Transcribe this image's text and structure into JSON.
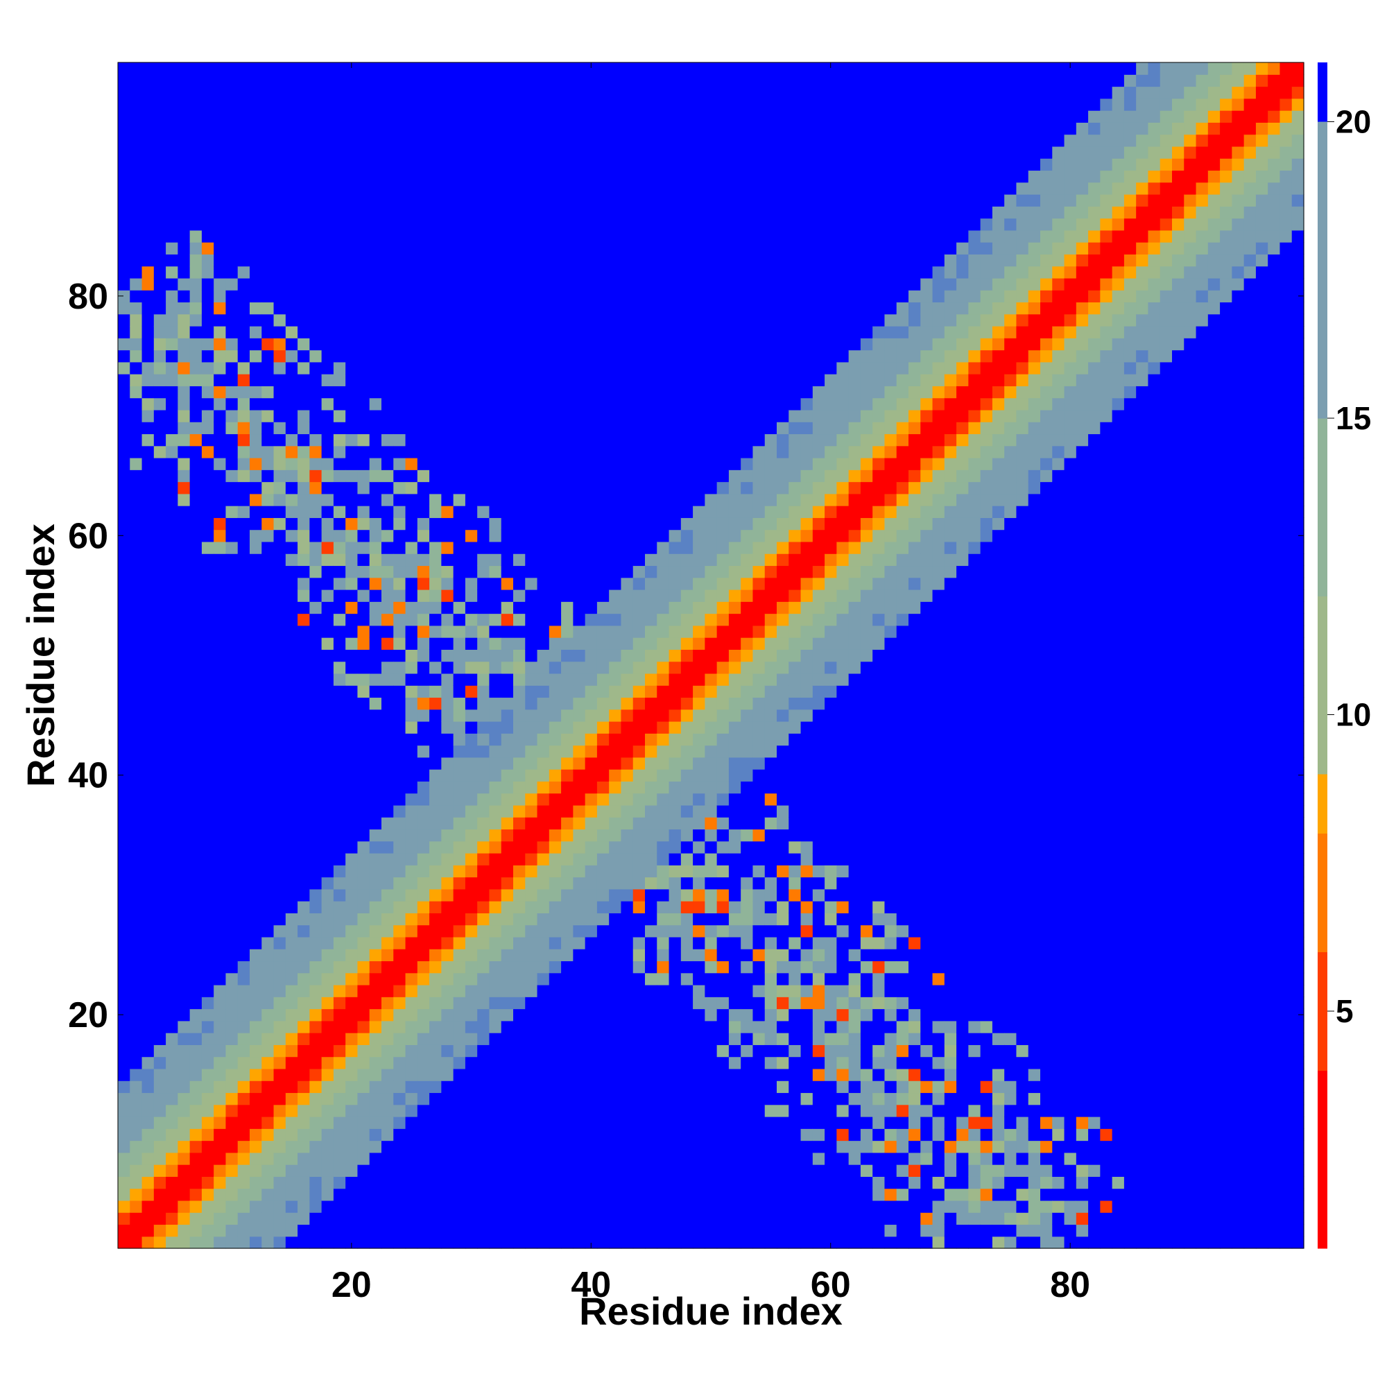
{
  "chart_data": {
    "type": "heatmap",
    "title": "",
    "xlabel": "Residue index",
    "ylabel": "Residue index",
    "n_residues": 99,
    "xlim": [
      1,
      99
    ],
    "ylim": [
      1,
      99
    ],
    "x_ticks": [
      20,
      40,
      60,
      80
    ],
    "y_ticks": [
      20,
      40,
      60,
      80
    ],
    "colorbar": {
      "ticks": [
        5,
        10,
        15,
        20
      ],
      "range": [
        1,
        21
      ],
      "colormap": [
        {
          "value": 1,
          "color": "#ff0000"
        },
        {
          "value": 4,
          "color": "#ff3d00"
        },
        {
          "value": 6,
          "color": "#ff7a00"
        },
        {
          "value": 8,
          "color": "#ffa500"
        },
        {
          "value": 9,
          "color": "#9fb88a"
        },
        {
          "value": 12,
          "color": "#90b499"
        },
        {
          "value": 15,
          "color": "#7b9eb0"
        },
        {
          "value": 20,
          "color": "#5a82c4"
        },
        {
          "value": 21,
          "color": "#0000ff"
        }
      ]
    },
    "description_of_values": "Residue-residue distance map; diagonal band of near contacts plus an anti-diagonal cluster of long-range contacts.",
    "grid": false,
    "legend": "colorbar-right",
    "background_color": "#0000ff"
  }
}
